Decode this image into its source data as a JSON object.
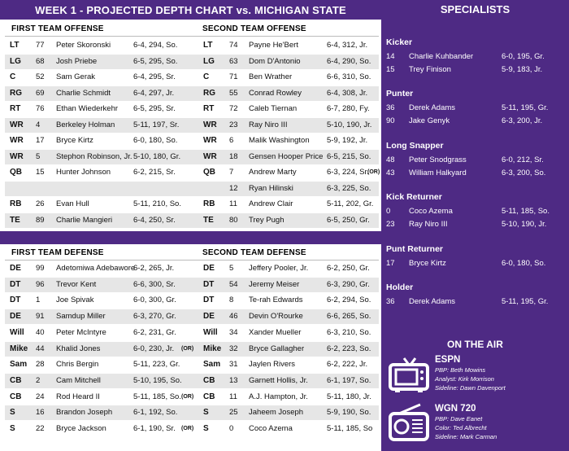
{
  "title": "WEEK 1 - PROJECTED DEPTH CHART vs. MICHIGAN STATE",
  "specialists_title": "SPECIALISTS",
  "offense": {
    "first_label": "FIRST TEAM OFFENSE",
    "second_label": "SECOND TEAM OFFENSE",
    "rows": [
      {
        "pos1": "LT",
        "num1": "77",
        "name1": "Peter Skoronski",
        "info1": "6-4, 294, So.",
        "pos2": "LT",
        "num2": "74",
        "name2": "Payne He'Bert",
        "info2": "6-4, 312, Jr."
      },
      {
        "pos1": "LG",
        "num1": "68",
        "name1": "Josh Priebe",
        "info1": "6-5, 295, So.",
        "pos2": "LG",
        "num2": "63",
        "name2": "Dom D'Antonio",
        "info2": "6-4, 290, So."
      },
      {
        "pos1": "C",
        "num1": "52",
        "name1": "Sam Gerak",
        "info1": "6-4, 295, Sr.",
        "pos2": "C",
        "num2": "71",
        "name2": "Ben Wrather",
        "info2": "6-6, 310, So."
      },
      {
        "pos1": "RG",
        "num1": "69",
        "name1": "Charlie Schmidt",
        "info1": "6-4, 297, Jr.",
        "pos2": "RG",
        "num2": "55",
        "name2": "Conrad Rowley",
        "info2": "6-4, 308, Jr."
      },
      {
        "pos1": "RT",
        "num1": "76",
        "name1": "Ethan Wiederkehr",
        "info1": "6-5, 295, Sr.",
        "pos2": "RT",
        "num2": "72",
        "name2": "Caleb Tiernan",
        "info2": "6-7, 280, Fy."
      },
      {
        "pos1": "WR",
        "num1": "4",
        "name1": "Berkeley Holman",
        "info1": "5-11, 197, Sr.",
        "pos2": "WR",
        "num2": "23",
        "name2": "Ray Niro III",
        "info2": "5-10, 190, Jr."
      },
      {
        "pos1": "WR",
        "num1": "17",
        "name1": "Bryce Kirtz",
        "info1": "6-0, 180, So.",
        "pos2": "WR",
        "num2": "6",
        "name2": "Malik Washington",
        "info2": "5-9, 192, Jr."
      },
      {
        "pos1": "WR",
        "num1": "5",
        "name1": "Stephon Robinson, Jr.",
        "info1": "5-10, 180, Gr.",
        "pos2": "WR",
        "num2": "18",
        "name2": "Gensen Hooper Price",
        "info2": "6-5, 215, So."
      },
      {
        "pos1": "QB",
        "num1": "15",
        "name1": "Hunter Johnson",
        "info1": "6-2, 215, Sr.",
        "pos2": "QB",
        "num2": "7",
        "name2": "Andrew Marty",
        "info2": "6-3, 224, Sr.",
        "or2": "(OR)"
      },
      {
        "pos1": "",
        "num1": "",
        "name1": "",
        "info1": "",
        "pos2": "",
        "num2": "12",
        "name2": "Ryan Hilinski",
        "info2": "6-3, 225, So."
      },
      {
        "pos1": "RB",
        "num1": "26",
        "name1": "Evan Hull",
        "info1": "5-11, 210, So.",
        "pos2": "RB",
        "num2": "11",
        "name2": "Andrew Clair",
        "info2": "5-11, 202, Gr."
      },
      {
        "pos1": "TE",
        "num1": "89",
        "name1": "Charlie Mangieri",
        "info1": "6-4, 250, Sr.",
        "pos2": "TE",
        "num2": "80",
        "name2": "Trey Pugh",
        "info2": "6-5, 250, Gr."
      }
    ]
  },
  "defense": {
    "first_label": "FIRST TEAM DEFENSE",
    "second_label": "SECOND TEAM DEFENSE",
    "rows": [
      {
        "pos1": "DE",
        "num1": "99",
        "name1": "Adetomiwa Adebawore",
        "info1": "6-2, 265, Jr.",
        "pos2": "DE",
        "num2": "5",
        "name2": "Jeffery Pooler, Jr.",
        "info2": "6-2, 250, Gr."
      },
      {
        "pos1": "DT",
        "num1": "96",
        "name1": "Trevor Kent",
        "info1": "6-6, 300, Sr.",
        "pos2": "DT",
        "num2": "54",
        "name2": "Jeremy Meiser",
        "info2": "6-3, 290, Gr."
      },
      {
        "pos1": "DT",
        "num1": "1",
        "name1": "Joe Spivak",
        "info1": "6-0, 300, Gr.",
        "pos2": "DT",
        "num2": "8",
        "name2": "Te-rah Edwards",
        "info2": "6-2, 294, So."
      },
      {
        "pos1": "DE",
        "num1": "91",
        "name1": "Samdup Miller",
        "info1": "6-3, 270, Gr.",
        "pos2": "DE",
        "num2": "46",
        "name2": "Devin O'Rourke",
        "info2": "6-6, 265, So."
      },
      {
        "pos1": "Will",
        "num1": "40",
        "name1": "Peter McIntyre",
        "info1": "6-2, 231, Gr.",
        "pos2": "Will",
        "num2": "34",
        "name2": "Xander Mueller",
        "info2": "6-3, 210, So."
      },
      {
        "pos1": "Mike",
        "num1": "44",
        "name1": "Khalid Jones",
        "info1": "6-0, 230, Jr.",
        "or1": "(OR)",
        "pos2": "Mike",
        "num2": "32",
        "name2": "Bryce Gallagher",
        "info2": "6-2, 223, So."
      },
      {
        "pos1": "Sam",
        "num1": "28",
        "name1": "Chris Bergin",
        "info1": "5-11, 223, Gr.",
        "pos2": "Sam",
        "num2": "31",
        "name2": "Jaylen Rivers",
        "info2": "6-2, 222, Jr."
      },
      {
        "pos1": "CB",
        "num1": "2",
        "name1": "Cam Mitchell",
        "info1": "5-10, 195, So.",
        "pos2": "CB",
        "num2": "13",
        "name2": "Garnett Hollis, Jr.",
        "info2": "6-1, 197, So."
      },
      {
        "pos1": "CB",
        "num1": "24",
        "name1": "Rod Heard II",
        "info1": "5-11, 185, So.",
        "or1": "(OR)",
        "pos2": "CB",
        "num2": "11",
        "name2": "A.J. Hampton, Jr.",
        "info2": "5-11, 180, Jr."
      },
      {
        "pos1": "S",
        "num1": "16",
        "name1": "Brandon Joseph",
        "info1": "6-1, 192, So.",
        "pos2": "S",
        "num2": "25",
        "name2": "Jaheem Joseph",
        "info2": "5-9, 190, So."
      },
      {
        "pos1": "S",
        "num1": "22",
        "name1": "Bryce Jackson",
        "info1": "6-1, 190, Sr.",
        "or1": "(OR)",
        "pos2": "S",
        "num2": "0",
        "name2": "Coco Azema",
        "info2": "5-11, 185, So"
      }
    ]
  },
  "specialists": [
    {
      "heading": "Kicker",
      "players": [
        {
          "num": "14",
          "name": "Charlie Kuhbander",
          "info": "6-0, 195, Gr."
        },
        {
          "num": "15",
          "name": "Trey Finison",
          "info": "5-9, 183, Jr."
        }
      ]
    },
    {
      "heading": "Punter",
      "players": [
        {
          "num": "36",
          "name": "Derek Adams",
          "info": "5-11, 195, Gr."
        },
        {
          "num": "90",
          "name": "Jake Genyk",
          "info": "6-3, 200, Jr."
        }
      ]
    },
    {
      "heading": "Long Snapper",
      "players": [
        {
          "num": "48",
          "name": "Peter Snodgrass",
          "info": "6-0, 212, Sr."
        },
        {
          "num": "43",
          "name": "William Halkyard",
          "info": "6-3, 200, So."
        }
      ]
    },
    {
      "heading": "Kick Returner",
      "players": [
        {
          "num": "0",
          "name": "Coco Azema",
          "info": "5-11, 185, So."
        },
        {
          "num": "23",
          "name": "Ray Niro III",
          "info": "5-10, 190, Jr."
        }
      ]
    },
    {
      "heading": "Punt Returner",
      "players": [
        {
          "num": "17",
          "name": "Bryce Kirtz",
          "info": "6-0, 180, So."
        }
      ]
    },
    {
      "heading": "Holder",
      "players": [
        {
          "num": "36",
          "name": "Derek Adams",
          "info": "5-11, 195, Gr."
        }
      ]
    }
  ],
  "on_the_air": {
    "title": "ON THE AIR",
    "tv": {
      "icon": "tv-icon",
      "name": "ESPN",
      "lines": [
        "PBP: Beth Mowins",
        "Analyst: Kirk Morrison",
        "Sideline: Dawn Davenport"
      ]
    },
    "radio": {
      "icon": "radio-icon",
      "name": "WGN 720",
      "lines": [
        "PBP: Dave Eanet",
        "Color: Ted Albrecht",
        "Sideline: Mark Carman"
      ]
    }
  },
  "colors": {
    "purple": "#4e2a84",
    "shade": "#e6e6e6"
  }
}
